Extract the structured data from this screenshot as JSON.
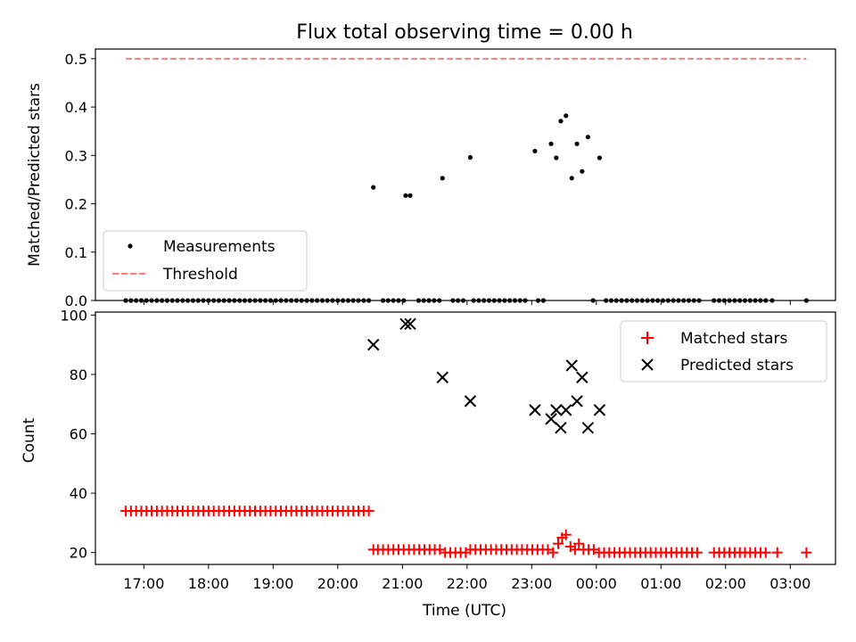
{
  "figure": {
    "title": "Flux total observing time = 0.00 h"
  },
  "chart_data": [
    {
      "type": "scatter",
      "title": "Flux total observing time = 0.00 h",
      "xlabel": "",
      "ylabel": "Matched/Predicted stars",
      "x_unit": "hours (UTC) from 00:00 of first day",
      "xlim": [
        16.25,
        27.7
      ],
      "ylim": [
        0.0,
        0.52
      ],
      "yticks": [
        "0.0",
        "0.1",
        "0.2",
        "0.3",
        "0.4",
        "0.5"
      ],
      "legend_position": "lower-left",
      "series": [
        {
          "name": "Measurements",
          "marker": "dot",
          "color": "#000000",
          "points": [
            [
              20.55,
              0.234
            ],
            [
              21.05,
              0.217
            ],
            [
              21.12,
              0.217
            ],
            [
              21.62,
              0.253
            ],
            [
              22.05,
              0.296
            ],
            [
              23.05,
              0.309
            ],
            [
              23.3,
              0.324
            ],
            [
              23.38,
              0.295
            ],
            [
              23.45,
              0.371
            ],
            [
              23.53,
              0.382
            ],
            [
              23.62,
              0.253
            ],
            [
              23.7,
              0.324
            ],
            [
              23.78,
              0.267
            ],
            [
              23.87,
              0.338
            ],
            [
              24.05,
              0.295
            ]
          ],
          "zero_x": [
            16.72,
            16.8,
            16.88,
            16.96,
            17.04,
            17.12,
            17.2,
            17.28,
            17.36,
            17.44,
            17.52,
            17.6,
            17.68,
            17.76,
            17.84,
            17.92,
            18.0,
            18.08,
            18.16,
            18.24,
            18.32,
            18.4,
            18.48,
            18.56,
            18.64,
            18.72,
            18.8,
            18.88,
            18.96,
            19.04,
            19.12,
            19.2,
            19.28,
            19.36,
            19.44,
            19.52,
            19.6,
            19.68,
            19.76,
            19.84,
            19.92,
            20.0,
            20.08,
            20.16,
            20.24,
            20.32,
            20.4,
            20.48,
            20.7,
            20.78,
            20.86,
            20.94,
            21.02,
            21.25,
            21.33,
            21.41,
            21.49,
            21.57,
            21.78,
            21.86,
            21.94,
            22.1,
            22.18,
            22.26,
            22.34,
            22.42,
            22.5,
            22.58,
            22.66,
            22.74,
            22.82,
            22.9,
            23.1,
            23.18,
            23.95,
            24.15,
            24.23,
            24.31,
            24.39,
            24.47,
            24.55,
            24.63,
            24.71,
            24.79,
            24.87,
            24.95,
            25.03,
            25.11,
            25.19,
            25.27,
            25.35,
            25.43,
            25.51,
            25.59,
            25.82,
            25.9,
            25.98,
            26.06,
            26.14,
            26.22,
            26.3,
            26.38,
            26.46,
            26.54,
            26.62,
            26.72,
            27.25
          ]
        },
        {
          "name": "Threshold",
          "style": "dashed",
          "color": "#ff7f7f",
          "points": [
            [
              16.72,
              0.5
            ],
            [
              27.25,
              0.5
            ]
          ]
        }
      ]
    },
    {
      "type": "scatter",
      "xlabel": "Time (UTC)",
      "ylabel": "Count",
      "x_unit": "hours (UTC) from 00:00 of first day",
      "xlim": [
        16.25,
        27.7
      ],
      "ylim": [
        16,
        101
      ],
      "yticks": [
        "20",
        "40",
        "60",
        "80",
        "100"
      ],
      "xticks": [
        {
          "x": 17,
          "label": "17:00"
        },
        {
          "x": 18,
          "label": "18:00"
        },
        {
          "x": 19,
          "label": "19:00"
        },
        {
          "x": 20,
          "label": "20:00"
        },
        {
          "x": 21,
          "label": "21:00"
        },
        {
          "x": 22,
          "label": "22:00"
        },
        {
          "x": 23,
          "label": "23:00"
        },
        {
          "x": 24,
          "label": "00:00"
        },
        {
          "x": 25,
          "label": "01:00"
        },
        {
          "x": 26,
          "label": "02:00"
        },
        {
          "x": 27,
          "label": "03:00"
        }
      ],
      "legend_position": "upper-right",
      "series": [
        {
          "name": "Matched stars",
          "marker": "plus",
          "color": "#ff0000",
          "points": [
            [
              16.72,
              34
            ],
            [
              16.8,
              34
            ],
            [
              16.88,
              34
            ],
            [
              16.96,
              34
            ],
            [
              17.04,
              34
            ],
            [
              17.12,
              34
            ],
            [
              17.2,
              34
            ],
            [
              17.28,
              34
            ],
            [
              17.36,
              34
            ],
            [
              17.44,
              34
            ],
            [
              17.52,
              34
            ],
            [
              17.6,
              34
            ],
            [
              17.68,
              34
            ],
            [
              17.76,
              34
            ],
            [
              17.84,
              34
            ],
            [
              17.92,
              34
            ],
            [
              18.0,
              34
            ],
            [
              18.08,
              34
            ],
            [
              18.16,
              34
            ],
            [
              18.24,
              34
            ],
            [
              18.32,
              34
            ],
            [
              18.4,
              34
            ],
            [
              18.48,
              34
            ],
            [
              18.56,
              34
            ],
            [
              18.64,
              34
            ],
            [
              18.72,
              34
            ],
            [
              18.8,
              34
            ],
            [
              18.88,
              34
            ],
            [
              18.96,
              34
            ],
            [
              19.04,
              34
            ],
            [
              19.12,
              34
            ],
            [
              19.2,
              34
            ],
            [
              19.28,
              34
            ],
            [
              19.36,
              34
            ],
            [
              19.44,
              34
            ],
            [
              19.52,
              34
            ],
            [
              19.6,
              34
            ],
            [
              19.68,
              34
            ],
            [
              19.76,
              34
            ],
            [
              19.84,
              34
            ],
            [
              19.92,
              34
            ],
            [
              20.0,
              34
            ],
            [
              20.08,
              34
            ],
            [
              20.16,
              34
            ],
            [
              20.24,
              34
            ],
            [
              20.32,
              34
            ],
            [
              20.4,
              34
            ],
            [
              20.48,
              34
            ],
            [
              20.55,
              21
            ],
            [
              20.62,
              21
            ],
            [
              20.7,
              21
            ],
            [
              20.78,
              21
            ],
            [
              20.86,
              21
            ],
            [
              20.94,
              21
            ],
            [
              21.02,
              21
            ],
            [
              21.1,
              21
            ],
            [
              21.18,
              21
            ],
            [
              21.26,
              21
            ],
            [
              21.34,
              21
            ],
            [
              21.42,
              21
            ],
            [
              21.5,
              21
            ],
            [
              21.58,
              21
            ],
            [
              21.66,
              20
            ],
            [
              21.74,
              20
            ],
            [
              21.82,
              20
            ],
            [
              21.9,
              20
            ],
            [
              21.98,
              20
            ],
            [
              22.05,
              21
            ],
            [
              22.13,
              21
            ],
            [
              22.21,
              21
            ],
            [
              22.29,
              21
            ],
            [
              22.37,
              21
            ],
            [
              22.45,
              21
            ],
            [
              22.53,
              21
            ],
            [
              22.61,
              21
            ],
            [
              22.69,
              21
            ],
            [
              22.77,
              21
            ],
            [
              22.85,
              21
            ],
            [
              22.93,
              21
            ],
            [
              23.01,
              21
            ],
            [
              23.09,
              21
            ],
            [
              23.17,
              21
            ],
            [
              23.25,
              21
            ],
            [
              23.33,
              20
            ],
            [
              23.41,
              23
            ],
            [
              23.47,
              25
            ],
            [
              23.53,
              26
            ],
            [
              23.6,
              22
            ],
            [
              23.67,
              21
            ],
            [
              23.73,
              23
            ],
            [
              23.8,
              21
            ],
            [
              23.88,
              21
            ],
            [
              23.96,
              21
            ],
            [
              24.04,
              20
            ],
            [
              24.12,
              20
            ],
            [
              24.2,
              20
            ],
            [
              24.28,
              20
            ],
            [
              24.36,
              20
            ],
            [
              24.44,
              20
            ],
            [
              24.52,
              20
            ],
            [
              24.6,
              20
            ],
            [
              24.68,
              20
            ],
            [
              24.76,
              20
            ],
            [
              24.84,
              20
            ],
            [
              24.92,
              20
            ],
            [
              25.0,
              20
            ],
            [
              25.08,
              20
            ],
            [
              25.16,
              20
            ],
            [
              25.24,
              20
            ],
            [
              25.32,
              20
            ],
            [
              25.4,
              20
            ],
            [
              25.48,
              20
            ],
            [
              25.56,
              20
            ],
            [
              25.82,
              20
            ],
            [
              25.9,
              20
            ],
            [
              25.98,
              20
            ],
            [
              26.06,
              20
            ],
            [
              26.14,
              20
            ],
            [
              26.22,
              20
            ],
            [
              26.3,
              20
            ],
            [
              26.38,
              20
            ],
            [
              26.46,
              20
            ],
            [
              26.54,
              20
            ],
            [
              26.62,
              20
            ],
            [
              26.8,
              20
            ],
            [
              27.25,
              20
            ]
          ]
        },
        {
          "name": "Predicted stars",
          "marker": "x",
          "color": "#000000",
          "points": [
            [
              20.55,
              90
            ],
            [
              21.05,
              97
            ],
            [
              21.12,
              97
            ],
            [
              21.62,
              79
            ],
            [
              22.05,
              71
            ],
            [
              23.05,
              68
            ],
            [
              23.3,
              65
            ],
            [
              23.38,
              68
            ],
            [
              23.45,
              62
            ],
            [
              23.53,
              68
            ],
            [
              23.62,
              83
            ],
            [
              23.7,
              71
            ],
            [
              23.78,
              79
            ],
            [
              23.87,
              62
            ],
            [
              24.05,
              68
            ]
          ]
        }
      ]
    }
  ]
}
